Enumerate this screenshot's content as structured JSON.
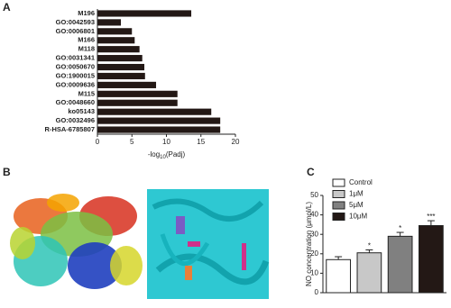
{
  "panels": [
    "A",
    "B",
    "C"
  ],
  "chart_data": [
    {
      "type": "hbar",
      "categories": [
        "M196",
        "GO:0042593",
        "GO:0006801",
        "M166",
        "M118",
        "GO:0031341",
        "GO:0050670",
        "GO:1900015",
        "GO:0009636",
        "M115",
        "GO:0048660",
        "ko05143",
        "GO:0032496",
        "R-HSA-6785807"
      ],
      "values": [
        13.6,
        3.4,
        5.0,
        5.4,
        6.1,
        6.5,
        6.8,
        6.9,
        8.5,
        11.6,
        11.6,
        16.5,
        17.8,
        17.8
      ],
      "color": "#231815",
      "xlim": [
        0,
        20
      ],
      "xticks": [
        0,
        5,
        10,
        15,
        20
      ],
      "xlabel": [
        "-log",
        "10",
        "(Padj)"
      ]
    },
    {
      "type": "errbar",
      "categories": [
        "Control",
        "1μM",
        "5μM",
        "10μM"
      ],
      "values": [
        17,
        20.5,
        29,
        34.5
      ],
      "errors": [
        1.5,
        1.5,
        2,
        2.5
      ],
      "colors": [
        "#ffffff",
        "#c8c8c8",
        "#808080",
        "#231815"
      ],
      "significance": [
        null,
        "*",
        "*",
        "***"
      ],
      "ylim": [
        0,
        50
      ],
      "yticks": [
        0,
        10,
        20,
        30,
        40,
        50
      ],
      "ylabel": "NO concentration (μmol/L)"
    }
  ]
}
